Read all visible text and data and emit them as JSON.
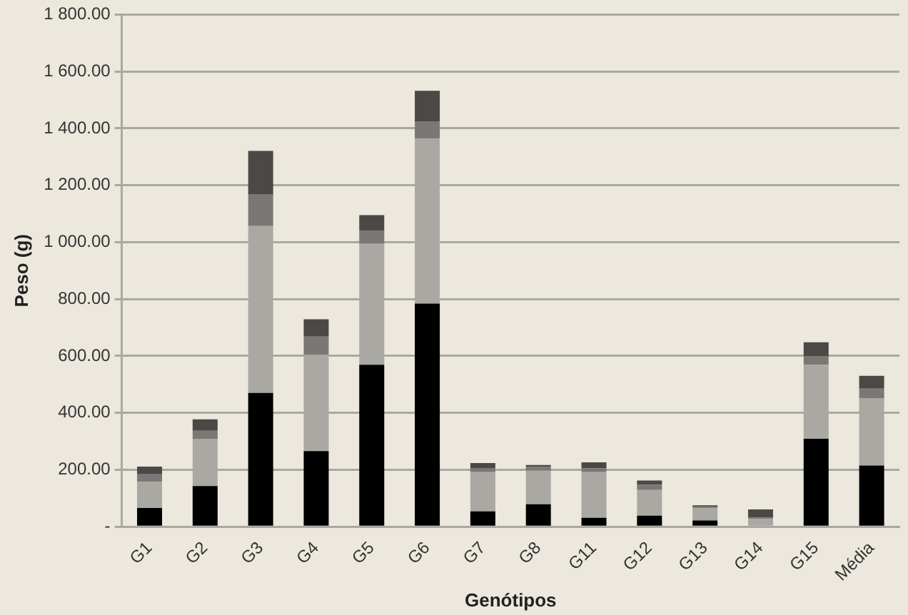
{
  "chart_data": {
    "type": "bar",
    "stacked": true,
    "xlabel": "Genótipos",
    "ylabel": "Peso (g)",
    "categories": [
      "G1",
      "G2",
      "G3",
      "G4",
      "G5",
      "G6",
      "G7",
      "G8",
      "G11",
      "G12",
      "G13",
      "G14",
      "G15",
      "Média"
    ],
    "series": [
      {
        "color": "#000000",
        "values": [
          66,
          143,
          470,
          266,
          569,
          784,
          54,
          79,
          31,
          39,
          22,
          null,
          309,
          215
        ]
      },
      {
        "color": "#a9a8a2",
        "values": [
          91,
          166,
          587,
          339,
          425,
          580,
          138,
          118,
          161,
          90,
          43,
          27,
          260,
          237
        ]
      },
      {
        "color": "#797874",
        "values": [
          27,
          28,
          110,
          63,
          47,
          61,
          14,
          13,
          13,
          18,
          5,
          5,
          31,
          33
        ]
      },
      {
        "color": "#4a4946",
        "values": [
          27,
          40,
          154,
          61,
          54,
          107,
          18,
          7,
          21,
          15,
          5,
          29,
          48,
          45
        ]
      }
    ],
    "ylim": [
      0,
      1800
    ],
    "yticks": [
      {
        "value": 0,
        "label": "-"
      },
      {
        "value": 200,
        "label": "200.00"
      },
      {
        "value": 400,
        "label": "400.00"
      },
      {
        "value": 600,
        "label": "600.00"
      },
      {
        "value": 800,
        "label": "800.00"
      },
      {
        "value": 1000,
        "label": "1 000.00"
      },
      {
        "value": 1200,
        "label": "1 200.00"
      },
      {
        "value": 1400,
        "label": "1 400.00"
      },
      {
        "value": 1600,
        "label": "1 600.00"
      },
      {
        "value": 1800,
        "label": "1 800.00"
      }
    ],
    "grid": "y",
    "legend": false
  }
}
